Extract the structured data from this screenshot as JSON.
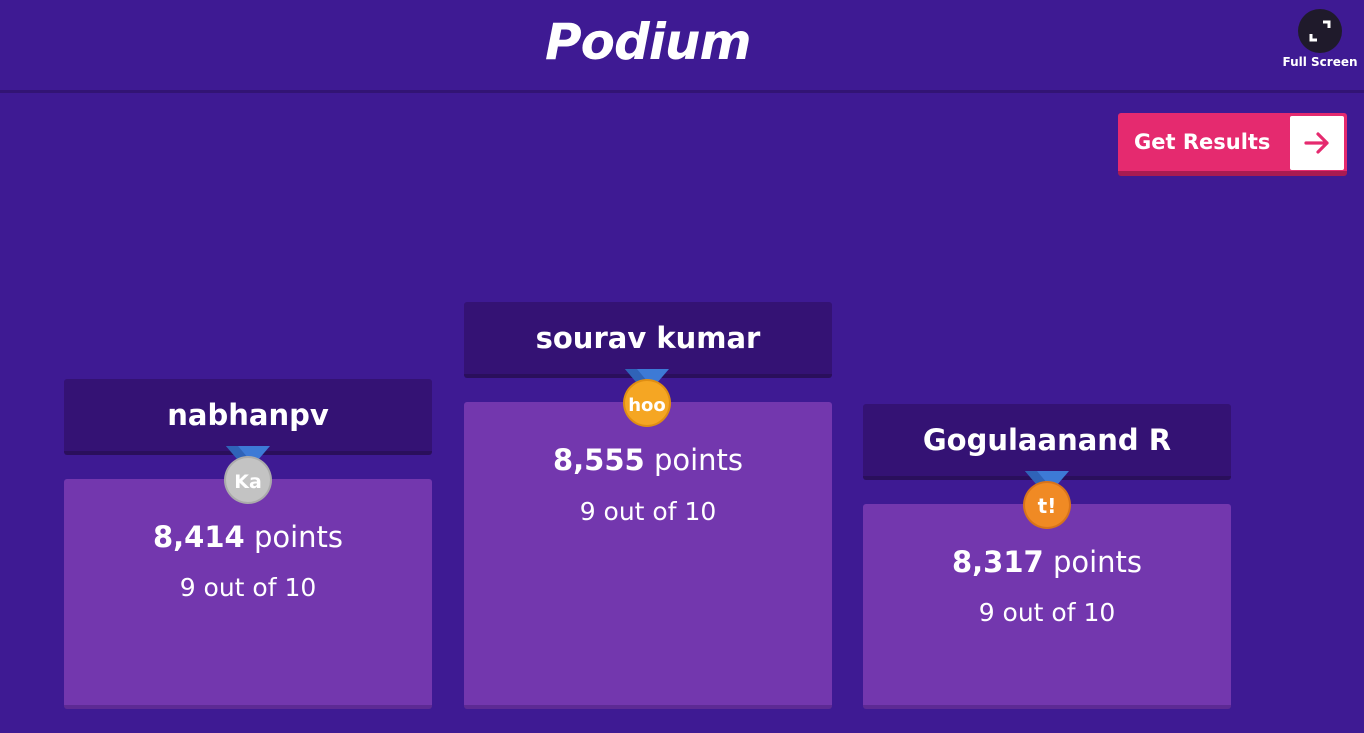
{
  "header": {
    "title": "Podium",
    "fullscreen_label": "Full Screen"
  },
  "actions": {
    "get_results_label": "Get Results"
  },
  "podium": [
    {
      "rank": 2,
      "name": "nabhanpv",
      "medal_text": "Ka",
      "medal_color": "#c3c3c3",
      "points_value": "8,414",
      "points_unit": "points",
      "score": "9 out of 10"
    },
    {
      "rank": 1,
      "name": "sourav kumar",
      "medal_text": "hoo",
      "medal_color": "#f5a623",
      "points_value": "8,555",
      "points_unit": "points",
      "score": "9 out of 10"
    },
    {
      "rank": 3,
      "name": "Gogulaanand R",
      "medal_text": "t!",
      "medal_color": "#f08a24",
      "points_value": "8,317",
      "points_unit": "points",
      "score": "9 out of 10"
    }
  ],
  "colors": {
    "background": "#3e1a93",
    "accent": "#e52a6f",
    "ribbon": "#3d7ad6"
  }
}
